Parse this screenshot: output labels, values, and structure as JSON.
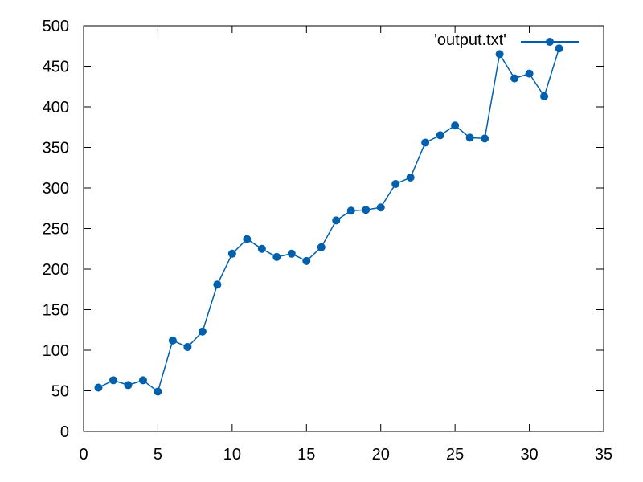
{
  "chart_data": {
    "type": "line",
    "title": "",
    "xlabel": "",
    "ylabel": "",
    "xlim": [
      0,
      35
    ],
    "ylim": [
      0,
      500
    ],
    "xticks": [
      0,
      5,
      10,
      15,
      20,
      25,
      30,
      35
    ],
    "yticks": [
      0,
      50,
      100,
      150,
      200,
      250,
      300,
      350,
      400,
      450,
      500
    ],
    "grid": false,
    "legend_position": "top-right",
    "series": [
      {
        "name": "'output.txt'",
        "color": "#0060ad",
        "marker": "circle",
        "x": [
          1,
          2,
          3,
          4,
          5,
          6,
          7,
          8,
          9,
          10,
          11,
          12,
          13,
          14,
          15,
          16,
          17,
          18,
          19,
          20,
          21,
          22,
          23,
          24,
          25,
          26,
          27,
          28,
          29,
          30,
          31,
          32
        ],
        "y": [
          54,
          63,
          57,
          63,
          49,
          112,
          104,
          123,
          181,
          219,
          237,
          225,
          215,
          219,
          210,
          227,
          260,
          272,
          273,
          276,
          305,
          313,
          356,
          365,
          377,
          362,
          361,
          465,
          435,
          441,
          413,
          472
        ]
      }
    ]
  }
}
